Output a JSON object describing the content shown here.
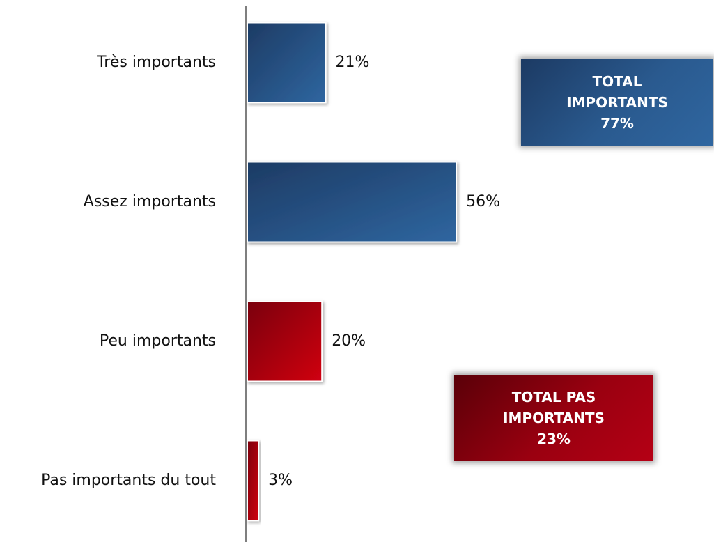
{
  "chart_data": {
    "type": "bar",
    "orientation": "horizontal",
    "categories": [
      "Très importants",
      "Assez importants",
      "Peu importants",
      "Pas importants du tout"
    ],
    "values": [
      21,
      56,
      20,
      3
    ],
    "value_labels": [
      "21%",
      "56%",
      "20%",
      "3%"
    ],
    "colors": [
      "#2a5a8f",
      "#2a5a8f",
      "#b00010",
      "#b00010"
    ],
    "xlim": [
      0,
      100
    ],
    "title": "",
    "xlabel": "",
    "ylabel": "",
    "grid": false,
    "legend": "none"
  },
  "summary_boxes": {
    "important": {
      "line1": "TOTAL",
      "line2": "IMPORTANTS",
      "value": "77%",
      "color": "#2a5a8f"
    },
    "not_important": {
      "line1": "TOTAL PAS",
      "line2": "IMPORTANTS",
      "value": "23%",
      "color": "#9a0010"
    }
  }
}
